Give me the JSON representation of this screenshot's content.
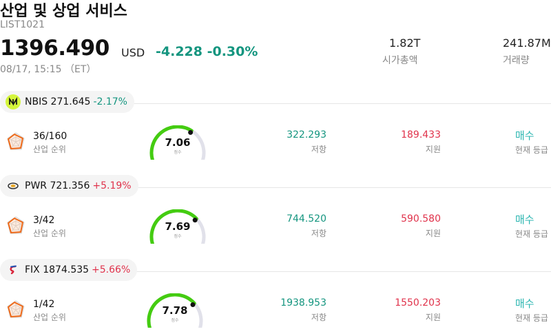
{
  "header": {
    "title": "산업 및 상업 서비스",
    "code": "LIST1021",
    "price": "1396.490",
    "currency": "USD",
    "change": "-4.228",
    "change_pct": "-0.30%",
    "time": "08/17, 15:15 （ET）",
    "market_cap_value": "1.82T",
    "market_cap_label": "시가총액",
    "volume_value": "241.87M",
    "volume_label": "거래량"
  },
  "labels": {
    "rank": "산업 순위",
    "score": "점수",
    "resistance": "저항",
    "support": "지원",
    "signal": "현재 등급"
  },
  "colors": {
    "up": "#e0324b",
    "down": "#14957f",
    "gauge": "#44cc11",
    "signal": "#2cb6b1"
  },
  "stocks": [
    {
      "ticker": "NBIS",
      "price": "271.645",
      "change_pct": "-2.17%",
      "direction": "down",
      "logo_icon": "nbis-logo-icon",
      "rank": "36/160",
      "score": 7.06,
      "resistance": "322.293",
      "support": "189.433",
      "signal": "매수"
    },
    {
      "ticker": "PWR",
      "price": "721.356",
      "change_pct": "+5.19%",
      "direction": "up",
      "logo_icon": "pwr-logo-icon",
      "rank": "3/42",
      "score": 7.69,
      "resistance": "744.520",
      "support": "590.580",
      "signal": "매수"
    },
    {
      "ticker": "FIX",
      "price": "1874.535",
      "change_pct": "+5.66%",
      "direction": "up",
      "logo_icon": "fix-logo-icon",
      "rank": "1/42",
      "score": 7.78,
      "resistance": "1938.953",
      "support": "1550.203",
      "signal": "매수"
    }
  ]
}
